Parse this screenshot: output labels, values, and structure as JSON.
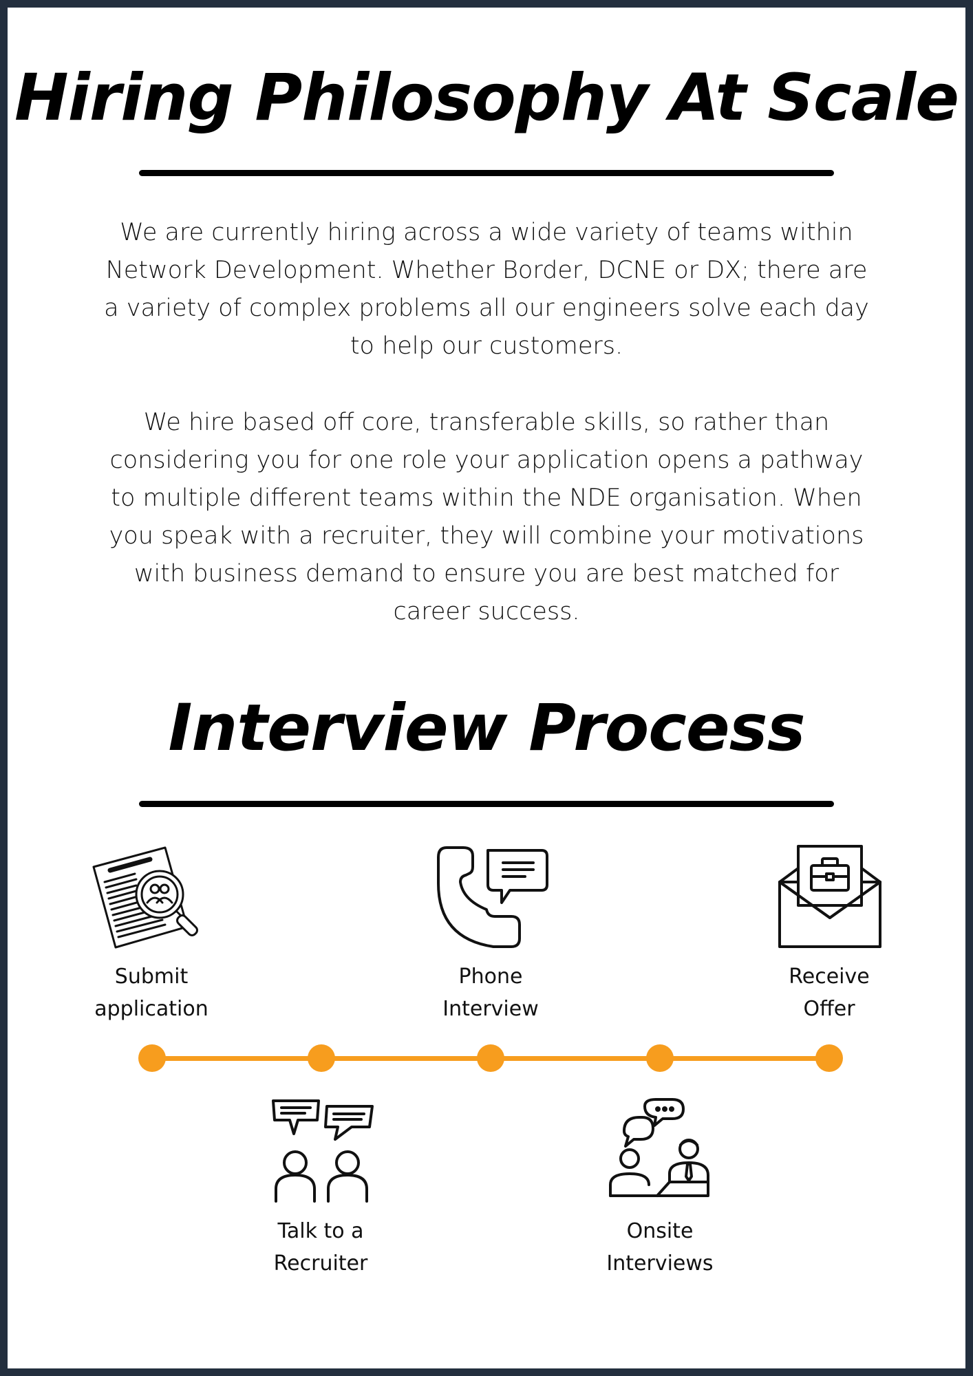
{
  "header": {
    "title": "Hiring Philosophy At Scale"
  },
  "intro": {
    "paragraph_1": "We are currently hiring across a wide variety of teams within Network Development. Whether Border, DCNE or DX; there are a variety of complex problems all our engineers solve each day to help our customers.",
    "paragraph_2": "We hire based off core, transferable skills, so rather than considering you for one role your application opens a pathway to multiple different teams within the NDE organisation. When you speak with a recruiter, they will combine your motivations with business demand to ensure you are best matched for career success."
  },
  "process": {
    "title": "Interview Process",
    "steps": [
      {
        "label_line_1": "Submit",
        "label_line_2": "application",
        "icon": "document-search-icon"
      },
      {
        "label_line_1": "Talk to a",
        "label_line_2": "Recruiter",
        "icon": "conversation-icon"
      },
      {
        "label_line_1": "Phone",
        "label_line_2": "Interview",
        "icon": "phone-chat-icon"
      },
      {
        "label_line_1": "Onsite",
        "label_line_2": "Interviews",
        "icon": "meeting-icon"
      },
      {
        "label_line_1": "Receive",
        "label_line_2": "Offer",
        "icon": "offer-envelope-icon"
      }
    ]
  },
  "colors": {
    "frame": "#232f3e",
    "accent": "#f79d1e",
    "text": "#000000",
    "background": "#ffffff"
  }
}
